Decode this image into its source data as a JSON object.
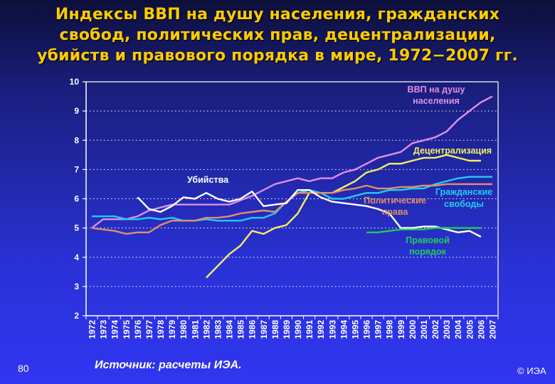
{
  "slide": {
    "title_lines": [
      "Индексы ВВП на душу населения, гражданских",
      "свобод, политических прав, децентрализации,",
      "убийств и правового порядка в мире, 1972−2007 гг."
    ],
    "page_number": "80",
    "source": "Источник: расчеты ИЭА.",
    "copyright": "© ИЭА"
  },
  "chart_data": {
    "type": "line",
    "title": "Индексы ВВП на душу населения, гражданских свобод, политических прав, децентрализации, убийств и правового порядка в мире, 1972−2007 гг.",
    "xlabel": "",
    "ylabel": "",
    "ylim": [
      2,
      10
    ],
    "yticks": [
      "2",
      "3",
      "4",
      "5",
      "6",
      "7",
      "8",
      "9",
      "10"
    ],
    "grid": "horizontal dotted",
    "legend_position": "inline labels",
    "x": [
      "1972",
      "1973",
      "1974",
      "1975",
      "1976",
      "1977",
      "1978",
      "1979",
      "1980",
      "1981",
      "1982",
      "1983",
      "1984",
      "1985",
      "1986",
      "1987",
      "1988",
      "1989",
      "1990",
      "1991",
      "1992",
      "1993",
      "1994",
      "1995",
      "1996",
      "1997",
      "1998",
      "1999",
      "2000",
      "2001",
      "2002",
      "2003",
      "2004",
      "2005",
      "2006",
      "2007"
    ],
    "series": [
      {
        "name": "ВВП на душу населения",
        "label_lines": [
          "ВВП на душу",
          "населения"
        ],
        "color": "#e08ee8",
        "values": [
          5.0,
          5.3,
          5.3,
          5.3,
          5.4,
          5.6,
          5.7,
          5.8,
          5.8,
          5.8,
          5.8,
          5.8,
          5.8,
          5.95,
          6.1,
          6.3,
          6.5,
          6.6,
          6.7,
          6.6,
          6.7,
          6.7,
          6.9,
          7.0,
          7.2,
          7.4,
          7.5,
          7.6,
          7.9,
          8.0,
          8.1,
          8.3,
          8.7,
          9.0,
          9.3,
          9.5
        ]
      },
      {
        "name": "Децентрализация",
        "label_lines": [
          "Децентрализация"
        ],
        "color": "#f5f060",
        "values": [
          null,
          null,
          null,
          null,
          null,
          null,
          null,
          null,
          null,
          null,
          3.3,
          3.7,
          4.1,
          4.4,
          4.9,
          4.8,
          5.0,
          5.1,
          5.5,
          6.2,
          6.2,
          6.2,
          6.4,
          6.6,
          6.9,
          7.0,
          7.2,
          7.2,
          7.3,
          7.4,
          7.4,
          7.5,
          7.4,
          7.3,
          7.3,
          null
        ]
      },
      {
        "name": "Гражданские свободы",
        "label_lines": [
          "Гражданские",
          "свободы"
        ],
        "color": "#22ccf0",
        "values": [
          5.4,
          5.4,
          5.4,
          5.3,
          5.3,
          5.35,
          5.3,
          5.35,
          5.25,
          5.25,
          5.3,
          5.25,
          5.25,
          5.25,
          5.35,
          5.35,
          5.5,
          5.9,
          6.2,
          6.3,
          6.2,
          6.0,
          6.0,
          6.1,
          6.2,
          6.2,
          6.3,
          6.3,
          6.35,
          6.35,
          6.5,
          6.6,
          6.7,
          6.75,
          6.75,
          6.75
        ]
      },
      {
        "name": "Политические права",
        "label_lines": [
          "Политические",
          "права"
        ],
        "color": "#e0906a",
        "values": [
          5.0,
          4.95,
          4.9,
          4.8,
          4.85,
          4.85,
          5.1,
          5.25,
          5.25,
          5.25,
          5.35,
          5.35,
          5.4,
          5.5,
          5.55,
          5.6,
          5.55,
          5.9,
          6.2,
          6.2,
          6.2,
          6.2,
          6.3,
          6.35,
          6.45,
          6.35,
          6.35,
          6.4,
          6.4,
          6.45,
          6.45,
          6.5,
          6.5,
          6.5,
          6.5,
          6.5
        ]
      },
      {
        "name": "Убийства",
        "label_lines": [
          "Убийства"
        ],
        "color": "#ffffff",
        "values": [
          null,
          null,
          null,
          null,
          6.05,
          5.65,
          5.55,
          5.75,
          6.05,
          6.0,
          6.2,
          6.0,
          5.9,
          6.0,
          6.25,
          5.75,
          5.8,
          5.85,
          6.3,
          6.3,
          6.05,
          5.9,
          5.85,
          5.8,
          5.75,
          5.65,
          5.5,
          5.0,
          5.0,
          5.05,
          5.05,
          4.95,
          4.85,
          4.9,
          4.7,
          null
        ]
      },
      {
        "name": "Правовой порядок",
        "label_lines": [
          "Правовой",
          "порядок"
        ],
        "color": "#22cc55",
        "values": [
          null,
          null,
          null,
          null,
          null,
          null,
          null,
          null,
          null,
          null,
          null,
          null,
          null,
          null,
          null,
          null,
          null,
          null,
          null,
          null,
          null,
          null,
          null,
          null,
          4.85,
          4.85,
          4.9,
          4.95,
          4.95,
          4.95,
          5.0,
          5.0,
          5.0,
          5.0,
          5.0,
          null
        ]
      }
    ]
  }
}
